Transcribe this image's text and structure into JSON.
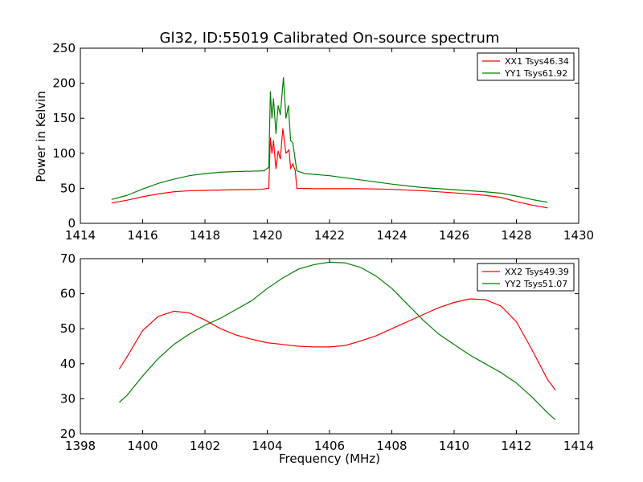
{
  "chart_data": [
    {
      "type": "line",
      "title": "Gl32, ID:55019 Calibrated On-source spectrum",
      "xlabel": "",
      "ylabel": "Power in Kelvin",
      "xlim": [
        1414,
        1430
      ],
      "ylim": [
        0,
        250
      ],
      "xticks": [
        1414,
        1416,
        1418,
        1420,
        1422,
        1424,
        1426,
        1428,
        1430
      ],
      "yticks": [
        0,
        50,
        100,
        150,
        200,
        250
      ],
      "grid": false,
      "legend_position": "top-right",
      "series": [
        {
          "name": "XX1 Tsys46.34",
          "color": "#ff0000",
          "points": [
            [
              1415.0,
              29
            ],
            [
              1415.5,
              33
            ],
            [
              1416.0,
              38
            ],
            [
              1416.5,
              42
            ],
            [
              1417.0,
              45
            ],
            [
              1417.5,
              46.5
            ],
            [
              1418.0,
              47
            ],
            [
              1419.0,
              48
            ],
            [
              1419.8,
              48.5
            ],
            [
              1420.05,
              50
            ],
            [
              1420.1,
              122
            ],
            [
              1420.15,
              100
            ],
            [
              1420.2,
              118
            ],
            [
              1420.28,
              78
            ],
            [
              1420.35,
              103
            ],
            [
              1420.42,
              92
            ],
            [
              1420.5,
              135
            ],
            [
              1420.6,
              100
            ],
            [
              1420.7,
              105
            ],
            [
              1420.75,
              78
            ],
            [
              1420.82,
              85
            ],
            [
              1420.9,
              75
            ],
            [
              1420.95,
              50
            ],
            [
              1421.5,
              49.5
            ],
            [
              1422.0,
              49.5
            ],
            [
              1423.0,
              49.5
            ],
            [
              1424.0,
              48.5
            ],
            [
              1425.0,
              46.5
            ],
            [
              1426.0,
              43.5
            ],
            [
              1427.0,
              40
            ],
            [
              1427.5,
              37
            ],
            [
              1428.0,
              31
            ],
            [
              1428.5,
              26
            ],
            [
              1429.0,
              22
            ]
          ]
        },
        {
          "name": "YY1 Tsys61.92",
          "color": "#008000",
          "points": [
            [
              1415.0,
              34
            ],
            [
              1415.5,
              40
            ],
            [
              1416.0,
              49
            ],
            [
              1416.5,
              57
            ],
            [
              1417.0,
              63
            ],
            [
              1417.5,
              68
            ],
            [
              1418.0,
              71
            ],
            [
              1418.5,
              73
            ],
            [
              1419.0,
              74
            ],
            [
              1419.5,
              74.5
            ],
            [
              1419.9,
              75
            ],
            [
              1420.05,
              80
            ],
            [
              1420.1,
              188
            ],
            [
              1420.15,
              150
            ],
            [
              1420.2,
              178
            ],
            [
              1420.28,
              128
            ],
            [
              1420.35,
              168
            ],
            [
              1420.42,
              155
            ],
            [
              1420.52,
              208
            ],
            [
              1420.6,
              150
            ],
            [
              1420.68,
              168
            ],
            [
              1420.75,
              118
            ],
            [
              1420.82,
              115
            ],
            [
              1420.9,
              90
            ],
            [
              1420.95,
              75
            ],
            [
              1421.2,
              71
            ],
            [
              1422.0,
              68
            ],
            [
              1423.0,
              62
            ],
            [
              1424.0,
              56
            ],
            [
              1425.0,
              51
            ],
            [
              1426.0,
              48
            ],
            [
              1427.0,
              45
            ],
            [
              1427.5,
              43
            ],
            [
              1428.0,
              39
            ],
            [
              1428.5,
              34
            ],
            [
              1429.0,
              30
            ]
          ]
        }
      ]
    },
    {
      "type": "line",
      "title": "",
      "xlabel": "Frequency (MHz)",
      "ylabel": "",
      "xlim": [
        1398,
        1414
      ],
      "ylim": [
        20,
        70
      ],
      "xticks": [
        1398,
        1400,
        1402,
        1404,
        1406,
        1408,
        1410,
        1412,
        1414
      ],
      "yticks": [
        20,
        30,
        40,
        50,
        60,
        70
      ],
      "grid": false,
      "legend_position": "top-right",
      "series": [
        {
          "name": "XX2 Tsys49.39",
          "color": "#ff0000",
          "points": [
            [
              1399.25,
              38.5
            ],
            [
              1399.5,
              42
            ],
            [
              1400.0,
              49.5
            ],
            [
              1400.5,
              53.5
            ],
            [
              1401.0,
              55
            ],
            [
              1401.5,
              54.5
            ],
            [
              1402.0,
              52.5
            ],
            [
              1402.5,
              50
            ],
            [
              1403.0,
              48.2
            ],
            [
              1403.5,
              47
            ],
            [
              1404.0,
              46
            ],
            [
              1404.5,
              45.5
            ],
            [
              1405.0,
              45
            ],
            [
              1405.5,
              44.8
            ],
            [
              1406.0,
              44.8
            ],
            [
              1406.5,
              45.2
            ],
            [
              1407.0,
              46.5
            ],
            [
              1407.5,
              48
            ],
            [
              1408.0,
              50
            ],
            [
              1408.5,
              52
            ],
            [
              1409.0,
              54
            ],
            [
              1409.5,
              56
            ],
            [
              1410.0,
              57.5
            ],
            [
              1410.5,
              58.5
            ],
            [
              1411.0,
              58.3
            ],
            [
              1411.5,
              56.5
            ],
            [
              1412.0,
              52
            ],
            [
              1412.5,
              44
            ],
            [
              1413.0,
              35.5
            ],
            [
              1413.25,
              32.5
            ]
          ]
        },
        {
          "name": "YY2 Tsys51.07",
          "color": "#008000",
          "points": [
            [
              1399.25,
              29
            ],
            [
              1399.5,
              31
            ],
            [
              1400.0,
              36.5
            ],
            [
              1400.5,
              41.5
            ],
            [
              1401.0,
              45.5
            ],
            [
              1401.5,
              48.5
            ],
            [
              1402.0,
              51
            ],
            [
              1402.5,
              53
            ],
            [
              1403.0,
              55.5
            ],
            [
              1403.5,
              58
            ],
            [
              1404.0,
              61.5
            ],
            [
              1404.5,
              64.5
            ],
            [
              1405.0,
              67
            ],
            [
              1405.5,
              68.3
            ],
            [
              1406.0,
              69
            ],
            [
              1406.5,
              68.8
            ],
            [
              1407.0,
              67.5
            ],
            [
              1407.5,
              65
            ],
            [
              1408.0,
              61.5
            ],
            [
              1408.5,
              57
            ],
            [
              1409.0,
              52.5
            ],
            [
              1409.5,
              48.5
            ],
            [
              1410.0,
              45.5
            ],
            [
              1410.5,
              42.5
            ],
            [
              1411.0,
              40
            ],
            [
              1411.5,
              37.5
            ],
            [
              1412.0,
              34.5
            ],
            [
              1412.5,
              30.5
            ],
            [
              1413.0,
              26
            ],
            [
              1413.25,
              24
            ]
          ]
        }
      ]
    }
  ]
}
